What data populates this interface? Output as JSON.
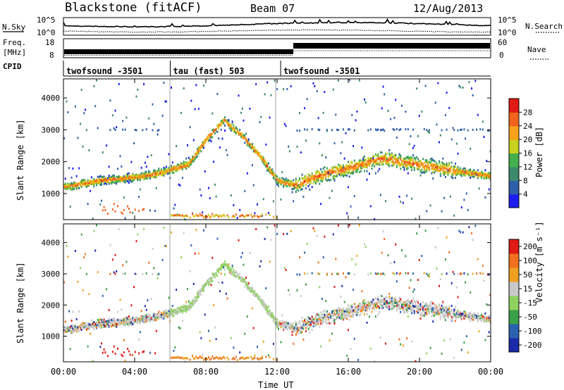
{
  "header": {
    "title": "Blackstone (fitACF)",
    "beam": "Beam 07",
    "date": "12/Aug/2013"
  },
  "noise_panel": {
    "left_label": "N.Sky",
    "right_label": "N.Search",
    "left_ticks": [
      "10^5",
      "10^0"
    ],
    "right_ticks": [
      "10^5",
      "10^0"
    ]
  },
  "freq_panel": {
    "left_label_line1": "Freq.",
    "left_label_line2": "[MHz]",
    "right_label": "Nave",
    "left_ticks": [
      "18",
      "8"
    ],
    "right_ticks": [
      "60",
      "0"
    ]
  },
  "cpid_panel": {
    "label": "CPID",
    "segments": [
      {
        "label": "twofsound -3501",
        "start_hour": 0,
        "end_hour": 6
      },
      {
        "label": "tau (fast) 503",
        "start_hour": 6,
        "end_hour": 12.2
      },
      {
        "label": "twofsound -3501",
        "start_hour": 12.2,
        "end_hour": 24
      }
    ]
  },
  "power_panel": {
    "ylabel": "Slant Range [km]",
    "yticks": [
      "1000",
      "2000",
      "3000",
      "4000"
    ],
    "colorbar_label": "Power [dB]",
    "colorbar_ticks": [
      "4",
      "8",
      "12",
      "16",
      "20",
      "24",
      "28"
    ]
  },
  "velocity_panel": {
    "ylabel": "Slant Range [km]",
    "yticks": [
      "1000",
      "2000",
      "3000",
      "4000"
    ],
    "colorbar_label": "Velocity [m s⁻¹]",
    "colorbar_ticks": [
      "200",
      "100",
      "50",
      "15",
      "-15",
      "-50",
      "-100",
      "-200"
    ]
  },
  "x_axis": {
    "label": "Time UT",
    "ticks": [
      "00:00",
      "04:00",
      "08:00",
      "12:00",
      "16:00",
      "20:00",
      "00:00"
    ]
  },
  "colors": {
    "power_scale": [
      "#1d1df0",
      "#2f5fa8",
      "#3c8a6c",
      "#44b04c",
      "#c8d21e",
      "#f5a21a",
      "#f0641e",
      "#e01a14"
    ],
    "velocity_scale": [
      "#1b2aa8",
      "#2a62b0",
      "#3aa04a",
      "#8fd25e",
      "#c8c8c8",
      "#f0a020",
      "#f07020",
      "#e01a14"
    ]
  },
  "chart_data": [
    {
      "type": "heatmap",
      "title": "Power",
      "xlabel": "Time UT",
      "ylabel": "Slant Range [km]",
      "xlim": [
        0,
        24
      ],
      "ylim": [
        180,
        4600
      ],
      "colorbar": {
        "label": "Power [dB]",
        "range": [
          0,
          32
        ]
      },
      "features": [
        {
          "name": "main_band",
          "points": [
            [
              0,
              1200
            ],
            [
              2,
              1400
            ],
            [
              4,
              1500
            ],
            [
              5.5,
              1650
            ],
            [
              6,
              1750
            ],
            [
              7,
              1900
            ],
            [
              8,
              2700
            ],
            [
              9,
              3300
            ],
            [
              10,
              2800
            ],
            [
              11,
              2200
            ],
            [
              12,
              1400
            ],
            [
              13,
              1250
            ],
            [
              14,
              1500
            ],
            [
              16,
              1800
            ],
            [
              18,
              2100
            ],
            [
              20,
              1900
            ],
            [
              22,
              1700
            ],
            [
              24,
              1550
            ]
          ],
          "value_db": 20
        },
        {
          "name": "near_range_band",
          "start_hour": 6,
          "end_hour": 12,
          "range_km": 300,
          "value_db": 18
        }
      ]
    },
    {
      "type": "heatmap",
      "title": "Velocity",
      "xlabel": "Time UT",
      "ylabel": "Slant Range [km]",
      "xlim": [
        0,
        24
      ],
      "ylim": [
        180,
        4600
      ],
      "colorbar": {
        "label": "Velocity [m s⁻¹]",
        "range": [
          -250,
          250
        ]
      }
    }
  ]
}
